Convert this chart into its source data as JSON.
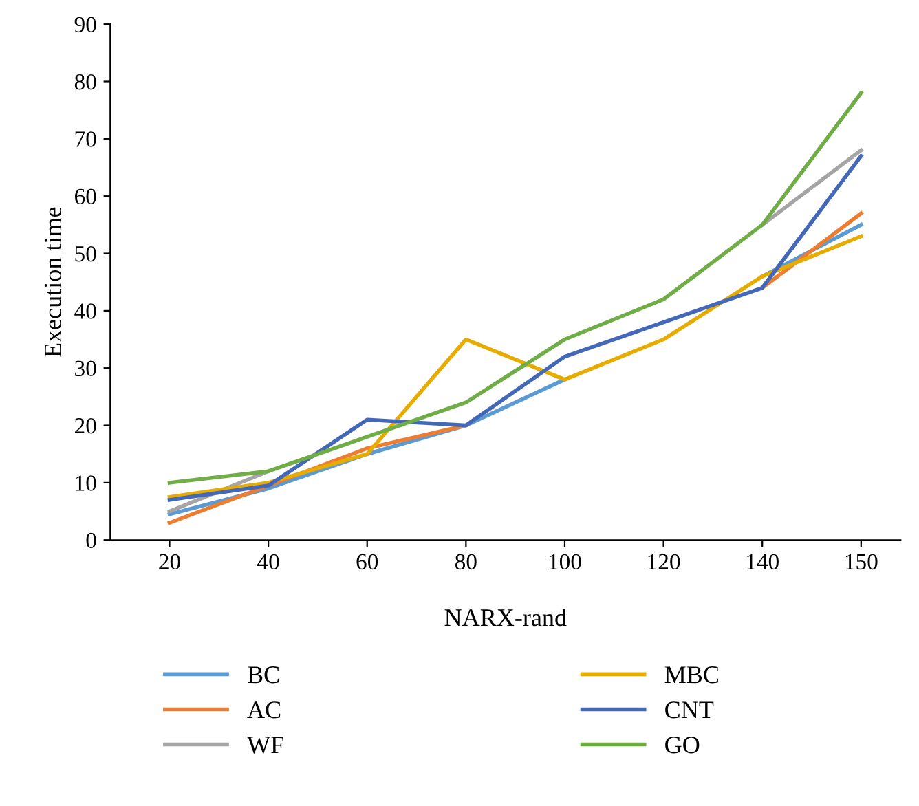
{
  "chart_data": {
    "type": "line",
    "xlabel": "NARX-rand",
    "ylabel": "Execution time",
    "categories": [
      "20",
      "40",
      "60",
      "80",
      "100",
      "120",
      "140",
      "150"
    ],
    "ylim": [
      0,
      90
    ],
    "yticks": [
      0,
      10,
      20,
      30,
      40,
      50,
      60,
      70,
      80,
      90
    ],
    "grid": false,
    "legend": "bottom",
    "marker": "none",
    "series": [
      {
        "name": "BC",
        "color": "#5b9bd5",
        "values": [
          4.5,
          9,
          15,
          20,
          28,
          null,
          46,
          55
        ]
      },
      {
        "name": "AC",
        "color": "#ed7d31",
        "values": [
          3,
          9.5,
          16,
          20,
          null,
          null,
          44,
          57
        ]
      },
      {
        "name": "WF",
        "color": "#a5a5a5",
        "values": [
          5,
          12,
          null,
          null,
          null,
          null,
          55,
          68
        ]
      },
      {
        "name": "MBC",
        "color": "#e6ac00",
        "values": [
          7.5,
          10,
          15,
          35,
          28,
          35,
          46,
          53
        ]
      },
      {
        "name": "CNT",
        "color": "#4468b8",
        "values": [
          7,
          9.5,
          21,
          20,
          32,
          38,
          44,
          67
        ]
      },
      {
        "name": "GO",
        "color": "#70ad47",
        "values": [
          10,
          12,
          18,
          24,
          35,
          42,
          55,
          78
        ]
      }
    ]
  }
}
